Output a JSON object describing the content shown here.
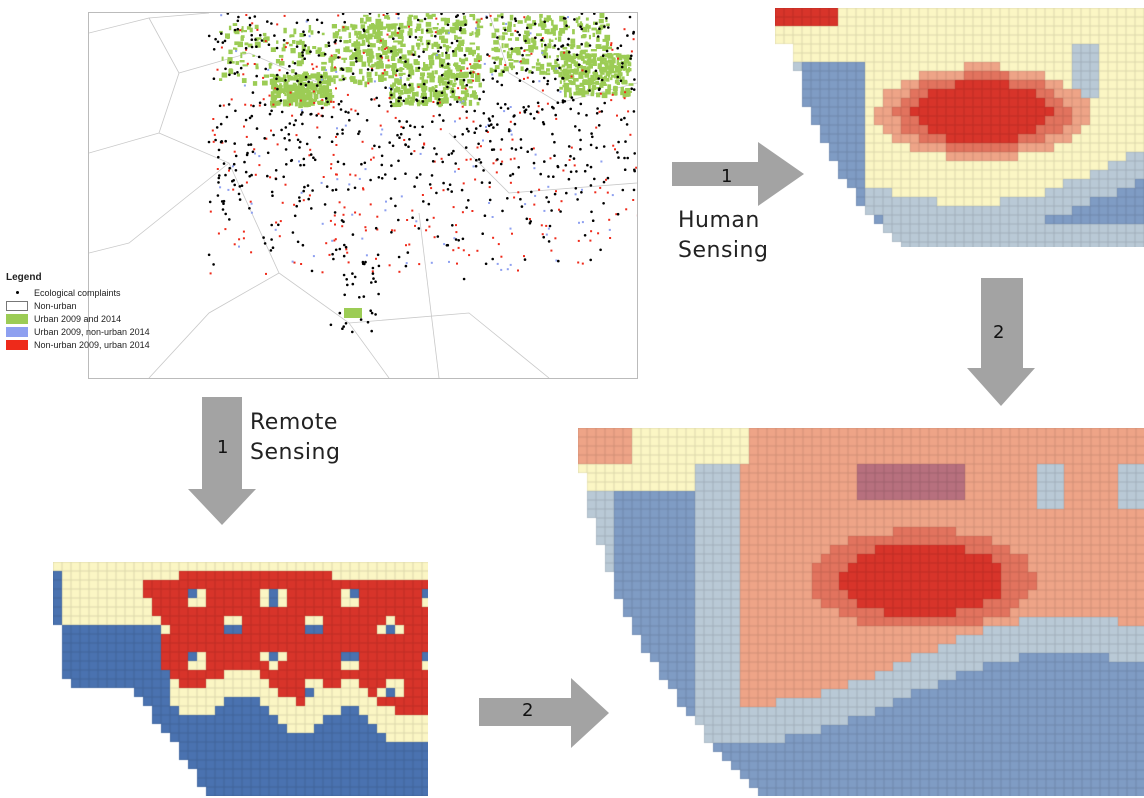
{
  "legend": {
    "title": "Legend",
    "items": [
      {
        "label": "Ecological complaints",
        "kind": "dot",
        "color": "#000000"
      },
      {
        "label": "Non-urban",
        "kind": "box",
        "color": "#ffffff"
      },
      {
        "label": "Urban 2009 and 2014",
        "kind": "box",
        "color": "#9ccc55"
      },
      {
        "label": "Urban 2009, non-urban 2014",
        "kind": "box",
        "color": "#8ea0f0"
      },
      {
        "label": "Non-urban 2009, urban 2014",
        "kind": "box",
        "color": "#ee2a1a"
      }
    ]
  },
  "arrows": {
    "human": {
      "step": "1",
      "caption_line1": "Human",
      "caption_line2": "Sensing"
    },
    "remote": {
      "step": "1",
      "caption_line1": "Remote",
      "caption_line2": "Sensing"
    },
    "human_to_fused": {
      "step": "2"
    },
    "remote_to_fused": {
      "step": "2"
    }
  },
  "colors": {
    "arrow": "#a3a3a3",
    "water_deep": "#4a72b0",
    "water_shallow": "#7f9cc4",
    "water_edge": "#b9c9d6",
    "neutral": "#fbf6c4",
    "warm_low": "#eea487",
    "warm_mid": "#e2735e",
    "hot": "#d8342a",
    "mauve": "#b7707e"
  }
}
